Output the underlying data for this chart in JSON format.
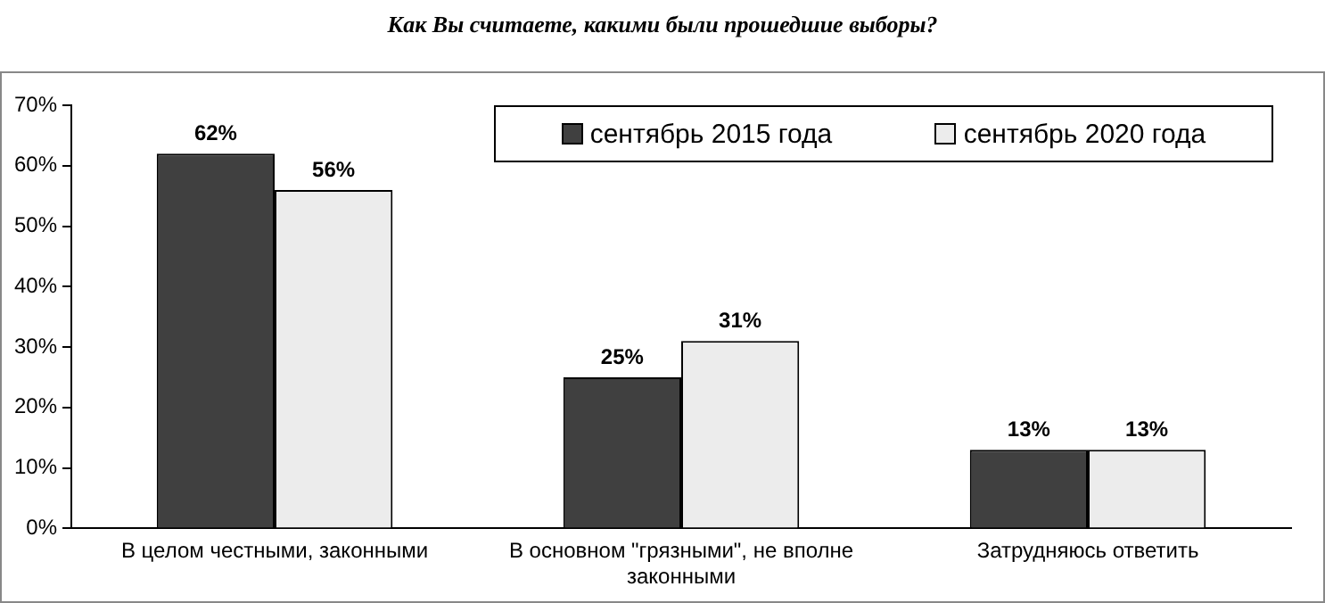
{
  "chart_data": {
    "type": "bar",
    "title": "Как Вы считаете, какими были прошедшие выборы?",
    "categories": [
      "В целом честными, законными",
      "В основном \"грязными\", не вполне законными",
      "Затрудняюсь ответить"
    ],
    "series": [
      {
        "name": "сентябрь 2015 года",
        "color": "#404040",
        "values": [
          62,
          25,
          13
        ],
        "value_labels": [
          "62%",
          "25%",
          "13%"
        ]
      },
      {
        "name": "сентябрь 2020 года",
        "color": "#ececec",
        "values": [
          56,
          31,
          13
        ],
        "value_labels": [
          "56%",
          "31%",
          "13%"
        ]
      }
    ],
    "ylim": [
      0,
      70
    ],
    "yticks": [
      {
        "value": 0,
        "label": "0%"
      },
      {
        "value": 10,
        "label": "10%"
      },
      {
        "value": 20,
        "label": "20%"
      },
      {
        "value": 30,
        "label": "30%"
      },
      {
        "value": 40,
        "label": "40%"
      },
      {
        "value": 50,
        "label": "50%"
      },
      {
        "value": 60,
        "label": "60%"
      },
      {
        "value": 70,
        "label": "70%"
      }
    ],
    "grid": false,
    "legend": "top right"
  }
}
